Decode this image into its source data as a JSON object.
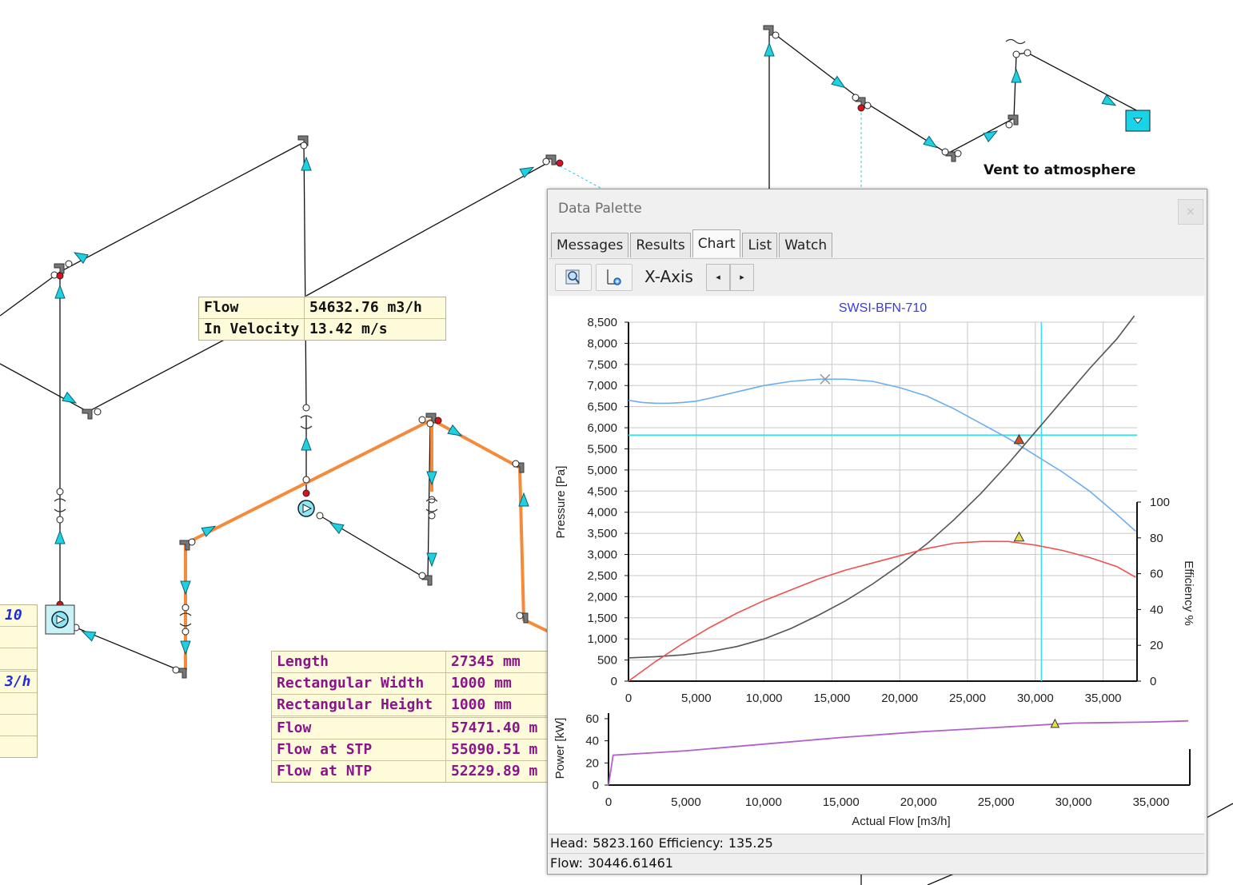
{
  "diagram": {
    "vent_label": "Vent to atmosphere",
    "tooltip_top": {
      "rows": [
        {
          "key": "Flow",
          "value": "54632.76 m3/h"
        },
        {
          "key": "In Velocity",
          "value": "13.42 m/s"
        }
      ]
    },
    "tooltip_bottom": {
      "rows": [
        {
          "key": "Length",
          "value": "27345 mm"
        },
        {
          "key": "Rectangular Width",
          "value": "1000 mm"
        },
        {
          "key": "Rectangular Height",
          "value": "1000 mm"
        },
        {
          "key": "Flow",
          "value": "57471.40 m"
        },
        {
          "key": "Flow at STP",
          "value": "55090.51 m"
        },
        {
          "key": "Flow at NTP",
          "value": "52229.89 m"
        }
      ]
    },
    "tooltip_left": {
      "rows": [
        {
          "value": "10"
        },
        {
          "value": ""
        },
        {
          "value": ""
        },
        {
          "value": "3/h"
        },
        {
          "value": ""
        },
        {
          "value": ""
        },
        {
          "value": ""
        }
      ]
    },
    "colors": {
      "pipe": "#111111",
      "highlight_pipe": "#f58a3a",
      "arrow": "#1fd0e0",
      "node_red": "#e0101b"
    }
  },
  "palette": {
    "title": "Data Palette",
    "close_label": "×",
    "tabs": [
      {
        "label": "Messages",
        "active": false
      },
      {
        "label": "Results",
        "active": false
      },
      {
        "label": "Chart",
        "active": true
      },
      {
        "label": "List",
        "active": false
      },
      {
        "label": "Watch",
        "active": false
      }
    ],
    "toolbar": {
      "zoom_icon": "magnifier-icon",
      "axis_settings_icon": "axis-gear-icon",
      "x_axis_label": "X-Axis",
      "prev_label": "◂",
      "next_label": "▸"
    },
    "status": {
      "head_label": "Head:",
      "head_value": "5823.160",
      "efficiency_label": "Efficiency:",
      "efficiency_value": "135.25",
      "flow_label": "Flow:",
      "flow_value": "30446.61461"
    }
  },
  "chart_data": [
    {
      "type": "line",
      "title": "SWSI-BFN-710",
      "xlabel": "",
      "ylabel": "Pressure [Pa]",
      "y2label": "Efficiency %",
      "xlim": [
        0,
        37500
      ],
      "ylim": [
        0,
        8500
      ],
      "y2lim": [
        0,
        100
      ],
      "xticks": [
        0,
        5000,
        10000,
        15000,
        20000,
        25000,
        30000,
        35000
      ],
      "xtick_labels": [
        "0",
        "5,000",
        "10,000",
        "15,000",
        "20,000",
        "25,000",
        "30,000",
        "35,000"
      ],
      "yticks": [
        0,
        500,
        1000,
        1500,
        2000,
        2500,
        3000,
        3500,
        4000,
        4500,
        5000,
        5500,
        6000,
        6500,
        7000,
        7500,
        8000,
        8500
      ],
      "ytick_labels": [
        "0",
        "500",
        "1,000",
        "1,500",
        "2,000",
        "2,500",
        "3,000",
        "3,500",
        "4,000",
        "4,500",
        "5,000",
        "5,500",
        "6,000",
        "6,500",
        "7,000",
        "7,500",
        "8,000",
        "8,500"
      ],
      "y2ticks": [
        0,
        20,
        40,
        60,
        80,
        100
      ],
      "y2tick_labels": [
        "0",
        "20",
        "40",
        "60",
        "80",
        "100"
      ],
      "grid": true,
      "series": [
        {
          "color": "#6aaef0",
          "axis": "left",
          "x": [
            0,
            1000,
            2000,
            3000,
            4000,
            5000,
            6000,
            8000,
            10000,
            12000,
            14000,
            14500,
            16000,
            18000,
            20000,
            22000,
            24000,
            26000,
            28000,
            29000,
            30000,
            32000,
            34000,
            36000,
            37400
          ],
          "y": [
            6650,
            6600,
            6580,
            6580,
            6600,
            6630,
            6700,
            6850,
            7000,
            7100,
            7150,
            7150,
            7150,
            7100,
            6950,
            6750,
            6450,
            6100,
            5750,
            5550,
            5350,
            4950,
            4500,
            3950,
            3550
          ]
        },
        {
          "color": "#555555",
          "axis": "left",
          "x": [
            0,
            2000,
            4000,
            6000,
            8000,
            10000,
            12000,
            14000,
            16000,
            18000,
            20000,
            22000,
            24000,
            26000,
            28000,
            30000,
            32000,
            34000,
            36000,
            37300
          ],
          "y": [
            550,
            580,
            620,
            700,
            820,
            1000,
            1250,
            1560,
            1900,
            2300,
            2750,
            3250,
            3820,
            4450,
            5150,
            5900,
            6650,
            7400,
            8100,
            8650
          ]
        },
        {
          "color": "#f05050",
          "axis": "right",
          "x": [
            0,
            2000,
            4000,
            6000,
            8000,
            10000,
            12000,
            14000,
            16000,
            18000,
            20000,
            22000,
            24000,
            26000,
            27000,
            28000,
            30000,
            32000,
            34000,
            36000,
            37400
          ],
          "y": [
            0,
            11,
            21,
            30,
            38,
            45,
            51,
            57,
            62,
            66,
            70,
            74,
            77,
            78,
            78,
            78,
            76,
            73,
            69,
            64,
            58
          ]
        }
      ],
      "reference_lines": {
        "x": 30446.61,
        "y": 5823.16,
        "color": "#3ce0e8"
      },
      "markers": [
        {
          "x": 14500,
          "y": 7150,
          "axis": "left",
          "shape": "x",
          "color": "#999999"
        },
        {
          "x": 28800,
          "y": 5700,
          "axis": "left",
          "shape": "triangle",
          "color": "#d0502a"
        },
        {
          "x": 28800,
          "y": 80,
          "axis": "right",
          "shape": "triangle",
          "color": "#e8e24a"
        }
      ]
    },
    {
      "type": "line",
      "title": "",
      "xlabel": "Actual Flow [m3/h]",
      "ylabel": "Power [kW]",
      "xlim": [
        0,
        37500
      ],
      "ylim": [
        0,
        65
      ],
      "xticks": [
        0,
        5000,
        10000,
        15000,
        20000,
        25000,
        30000,
        35000
      ],
      "xtick_labels": [
        "0",
        "5,000",
        "10,000",
        "15,000",
        "20,000",
        "25,000",
        "30,000",
        "35,000"
      ],
      "yticks": [
        0,
        20,
        40,
        60
      ],
      "ytick_labels": [
        "0",
        "20",
        "40",
        "60"
      ],
      "grid": false,
      "series": [
        {
          "color": "#b060c8",
          "x": [
            0,
            300,
            5000,
            10000,
            15000,
            20000,
            25000,
            28800,
            30000,
            35000,
            37400
          ],
          "y": [
            0,
            27,
            31,
            37,
            43,
            48,
            52,
            55,
            56,
            57,
            58
          ]
        }
      ],
      "markers": [
        {
          "x": 28800,
          "y": 55,
          "shape": "triangle",
          "color": "#e8e24a"
        }
      ]
    }
  ]
}
